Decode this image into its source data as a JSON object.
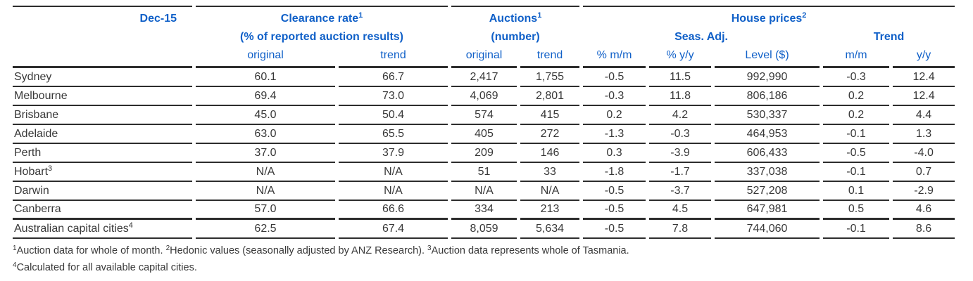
{
  "table": {
    "period": "Dec-15",
    "groups": {
      "clearance": {
        "title": "Clearance rate",
        "sup": "1",
        "subtitle": "(% of reported auction results)"
      },
      "auctions": {
        "title": "Auctions",
        "sup": "1",
        "subtitle": "(number)"
      },
      "house_prices": {
        "title": "House prices",
        "sup": "2",
        "seas_adj_label": "Seas. Adj.",
        "trend_label": "Trend"
      }
    },
    "columns": [
      "original",
      "trend",
      "original",
      "trend",
      "% m/m",
      "% y/y",
      "Level ($)",
      "m/m",
      "y/y"
    ],
    "rows": [
      {
        "label": "Sydney",
        "values": [
          "60.1",
          "66.7",
          "2,417",
          "1,755",
          "-0.5",
          "11.5",
          "992,990",
          "-0.3",
          "12.4"
        ]
      },
      {
        "label": "Melbourne",
        "values": [
          "69.4",
          "73.0",
          "4,069",
          "2,801",
          "-0.3",
          "11.8",
          "806,186",
          "0.2",
          "12.4"
        ]
      },
      {
        "label": "Brisbane",
        "values": [
          "45.0",
          "50.4",
          "574",
          "415",
          "0.2",
          "4.2",
          "530,337",
          "0.2",
          "4.4"
        ]
      },
      {
        "label": "Adelaide",
        "values": [
          "63.0",
          "65.5",
          "405",
          "272",
          "-1.3",
          "-0.3",
          "464,953",
          "-0.1",
          "1.3"
        ]
      },
      {
        "label": "Perth",
        "values": [
          "37.0",
          "37.9",
          "209",
          "146",
          "0.3",
          "-3.9",
          "606,433",
          "-0.5",
          "-4.0"
        ]
      },
      {
        "label": "Hobart",
        "sup": "3",
        "values": [
          "N/A",
          "N/A",
          "51",
          "33",
          "-1.8",
          "-1.7",
          "337,038",
          "-0.1",
          "0.7"
        ]
      },
      {
        "label": "Darwin",
        "values": [
          "N/A",
          "N/A",
          "N/A",
          "N/A",
          "-0.5",
          "-3.7",
          "527,208",
          "0.1",
          "-2.9"
        ]
      },
      {
        "label": "Canberra",
        "values": [
          "57.0",
          "66.6",
          "334",
          "213",
          "-0.5",
          "4.5",
          "647,981",
          "0.5",
          "4.6"
        ]
      },
      {
        "label": "Australian capital cities",
        "sup": "4",
        "values": [
          "62.5",
          "67.4",
          "8,059",
          "5,634",
          "-0.5",
          "7.8",
          "744,060",
          "-0.1",
          "8.6"
        ]
      }
    ]
  },
  "footnotes": [
    [
      {
        "sup": "1"
      },
      {
        "text": "Auction data for whole of month. "
      },
      {
        "sup": "2"
      },
      {
        "text": "Hedonic values (seasonally adjusted by ANZ Research). "
      },
      {
        "sup": "3"
      },
      {
        "text": "Auction data represents whole of Tasmania."
      }
    ],
    [
      {
        "sup": "4"
      },
      {
        "text": "Calculated for all available capital cities."
      }
    ]
  ],
  "colors": {
    "header_blue": "#1060c8",
    "body_text": "#383838",
    "rule_line": "#2d2d2d"
  }
}
